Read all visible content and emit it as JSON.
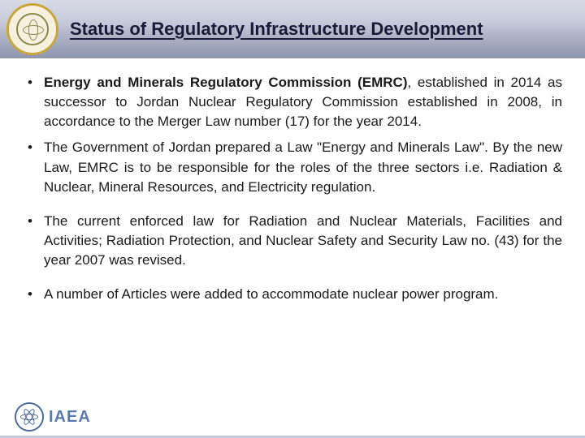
{
  "header": {
    "title": "Status of Regulatory Infrastructure Development",
    "background_gradient": [
      "#d9dce6",
      "#8f95b0"
    ],
    "title_color": "#1a1a3a",
    "title_fontsize": 22
  },
  "bullets": [
    {
      "lead_bold": "Energy and Minerals Regulatory Commission (EMRC)",
      "rest": ", established in 2014 as successor to Jordan Nuclear Regulatory Commission established in 2008, in accordance to the Merger Law number (17) for the year 2014.",
      "spaced": false
    },
    {
      "lead_bold": "",
      "rest": "The Government of Jordan prepared a Law \"Energy and Minerals Law\". By the new Law, EMRC is to be responsible for the roles of the three sectors i.e. Radiation & Nuclear, Mineral Resources, and Electricity regulation.",
      "spaced": false
    },
    {
      "lead_bold": "",
      "rest": "The current enforced law for Radiation and Nuclear Materials, Facilities and Activities; Radiation Protection, and Nuclear Safety and Security Law no. (43) for the year 2007 was revised.",
      "spaced": true
    },
    {
      "lead_bold": "",
      "rest": "A number of Articles were added to accommodate nuclear power program.",
      "spaced": true
    }
  ],
  "footer": {
    "org_text": "IAEA",
    "org_color": "#5a7aaa"
  },
  "body_font_size": 17,
  "body_text_color": "#1a1a1a"
}
